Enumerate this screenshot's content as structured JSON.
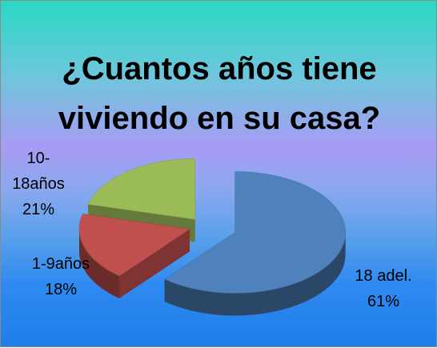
{
  "chart_data": {
    "type": "pie",
    "title": "¿Cuantos años tiene viviendo en su casa?",
    "categories": [
      "18 adel.",
      "1-9años",
      "10-18años"
    ],
    "values": [
      61,
      18,
      21
    ],
    "value_labels": [
      "61%",
      "18%",
      "21%"
    ],
    "colors": [
      "#4f81bd",
      "#c0504d",
      "#9bbb59"
    ]
  }
}
